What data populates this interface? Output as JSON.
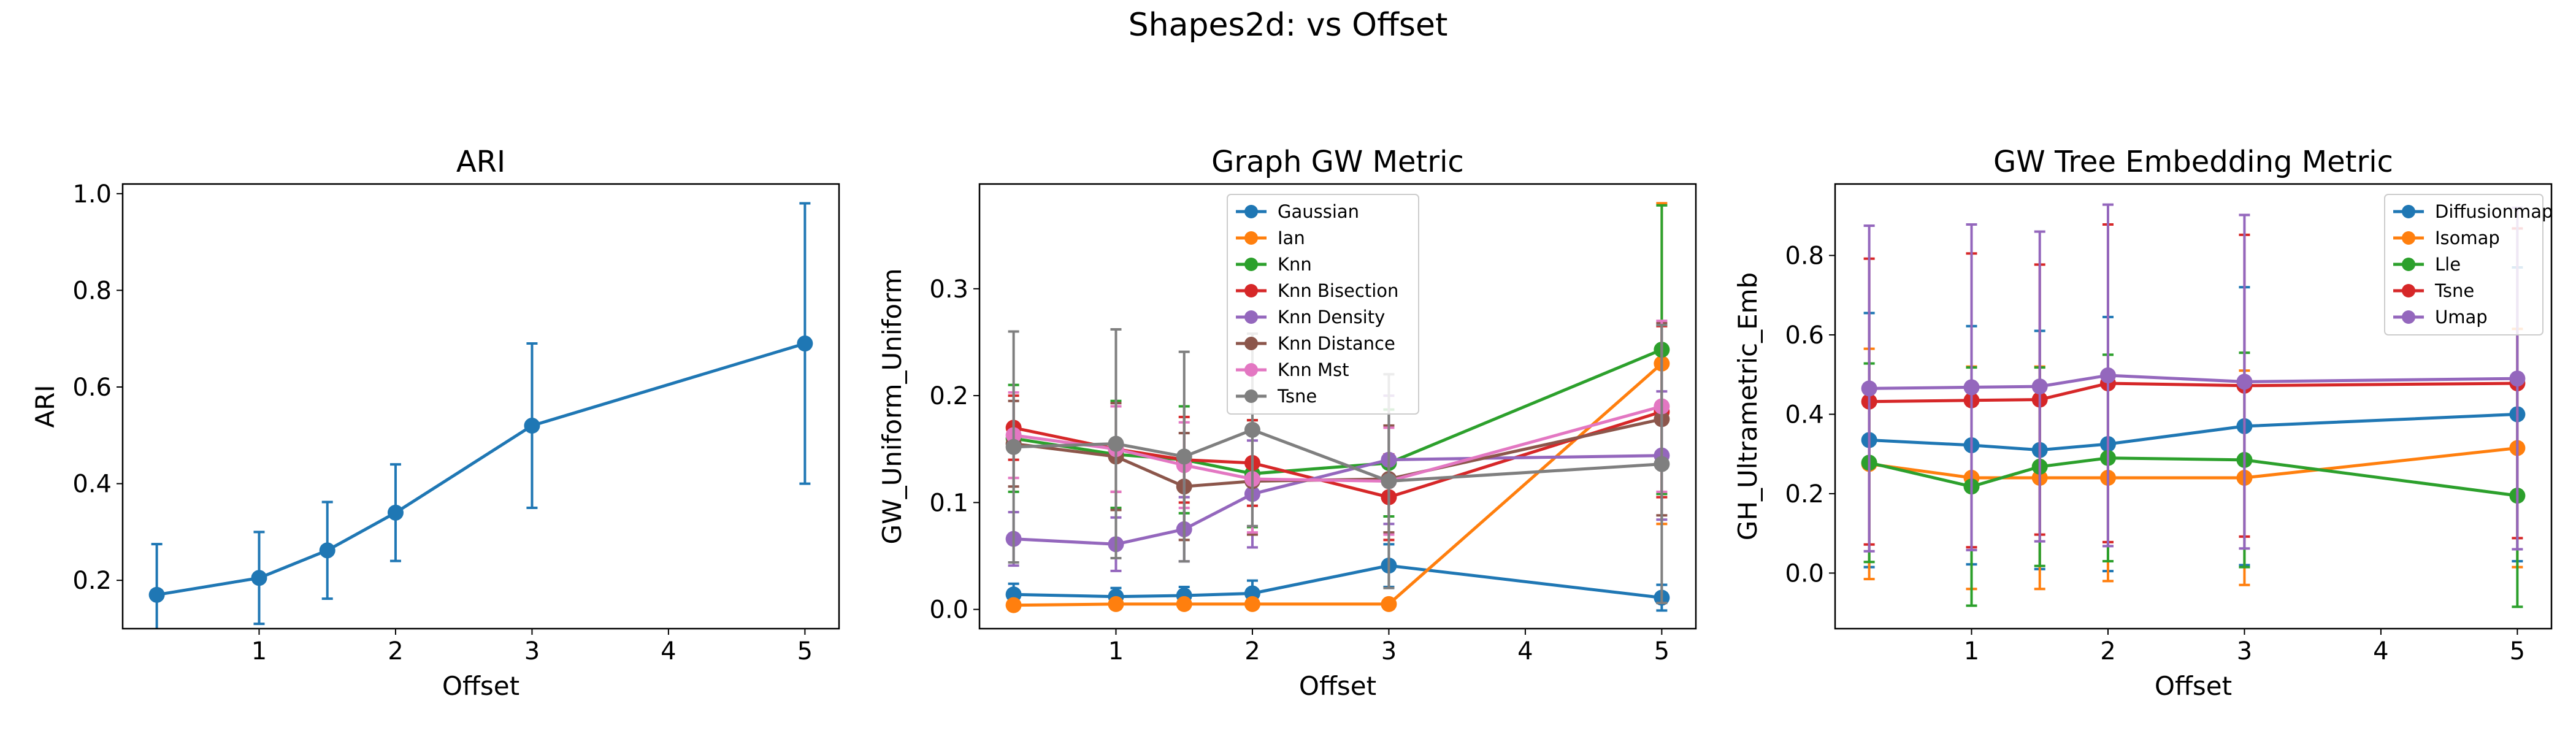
{
  "figure": {
    "suptitle": "Shapes2d: vs Offset"
  },
  "chart_data": [
    {
      "type": "line",
      "title": "ARI",
      "xlabel": "Offset",
      "ylabel": "ARI",
      "xlim": [
        0.0,
        5.25
      ],
      "ylim": [
        0.1,
        1.02
      ],
      "xticks": [
        1,
        2,
        3,
        4,
        5
      ],
      "yticks": [
        0.2,
        0.4,
        0.6,
        0.8,
        1.0
      ],
      "grid": false,
      "legend": null,
      "x": [
        0.25,
        1,
        1.5,
        2,
        3,
        5
      ],
      "series": [
        {
          "color": "#1f77b4",
          "values": [
            0.17,
            0.205,
            0.262,
            0.34,
            0.52,
            0.69
          ],
          "err": [
            0.105,
            0.095,
            0.1,
            0.1,
            0.17,
            0.29
          ]
        }
      ]
    },
    {
      "type": "line",
      "title": "Graph GW Metric",
      "xlabel": "Offset",
      "ylabel": "GW_Uniform_Uniform",
      "xlim": [
        0.0,
        5.25
      ],
      "ylim": [
        -0.018,
        0.398
      ],
      "xticks": [
        1,
        2,
        3,
        4,
        5
      ],
      "yticks": [
        0.0,
        0.1,
        0.2,
        0.3
      ],
      "grid": false,
      "legend": "top-center",
      "x": [
        0.25,
        1,
        1.5,
        2,
        3,
        5
      ],
      "series": [
        {
          "name": "Gaussian",
          "color": "#1f77b4",
          "values": [
            0.014,
            0.012,
            0.013,
            0.015,
            0.041,
            0.011
          ],
          "err": [
            0.01,
            0.008,
            0.008,
            0.012,
            0.02,
            0.012
          ]
        },
        {
          "name": "Ian",
          "color": "#ff7f0e",
          "values": [
            0.004,
            0.005,
            0.005,
            0.005,
            0.005,
            0.23
          ],
          "err": [
            0.003,
            0.003,
            0.003,
            0.003,
            0.003,
            0.15
          ]
        },
        {
          "name": "Knn",
          "color": "#2ca02c",
          "values": [
            0.16,
            0.145,
            0.14,
            0.127,
            0.137,
            0.243
          ],
          "err": [
            0.05,
            0.05,
            0.05,
            0.05,
            0.05,
            0.135
          ]
        },
        {
          "name": "Knn Bisection",
          "color": "#d62728",
          "values": [
            0.17,
            0.15,
            0.14,
            0.137,
            0.105,
            0.185
          ],
          "err": [
            0.03,
            0.04,
            0.04,
            0.04,
            0.04,
            0.08
          ]
        },
        {
          "name": "Knn Density",
          "color": "#9467bd",
          "values": [
            0.066,
            0.061,
            0.075,
            0.108,
            0.14,
            0.144
          ],
          "err": [
            0.025,
            0.025,
            0.03,
            0.05,
            0.06,
            0.06
          ]
        },
        {
          "name": "Knn Distance",
          "color": "#8c564b",
          "values": [
            0.155,
            0.143,
            0.115,
            0.12,
            0.122,
            0.178
          ],
          "err": [
            0.04,
            0.05,
            0.05,
            0.05,
            0.05,
            0.09
          ]
        },
        {
          "name": "Knn Mst",
          "color": "#e377c2",
          "values": [
            0.163,
            0.15,
            0.135,
            0.122,
            0.12,
            0.19
          ],
          "err": [
            0.04,
            0.04,
            0.04,
            0.05,
            0.05,
            0.08
          ]
        },
        {
          "name": "Tsne",
          "color": "#7f7f7f",
          "values": [
            0.152,
            0.155,
            0.143,
            0.168,
            0.12,
            0.136
          ],
          "err": [
            0.108,
            0.107,
            0.098,
            0.09,
            0.1,
            0.13
          ]
        }
      ]
    },
    {
      "type": "line",
      "title": "GW Tree Embedding Metric",
      "xlabel": "Offset",
      "ylabel": "GH_Ultrametric_Emb",
      "xlim": [
        0.0,
        5.25
      ],
      "ylim": [
        -0.14,
        0.98
      ],
      "xticks": [
        1,
        2,
        3,
        4,
        5
      ],
      "yticks": [
        0.0,
        0.2,
        0.4,
        0.6,
        0.8
      ],
      "grid": false,
      "legend": "top-right",
      "x": [
        0.25,
        1,
        1.5,
        2,
        3,
        5
      ],
      "series": [
        {
          "name": "Diffusionmap",
          "color": "#1f77b4",
          "values": [
            0.335,
            0.322,
            0.31,
            0.325,
            0.37,
            0.4
          ],
          "err": [
            0.32,
            0.3,
            0.3,
            0.32,
            0.35,
            0.37
          ]
        },
        {
          "name": "Isomap",
          "color": "#ff7f0e",
          "values": [
            0.275,
            0.24,
            0.24,
            0.24,
            0.24,
            0.315
          ],
          "err": [
            0.29,
            0.28,
            0.28,
            0.26,
            0.27,
            0.3
          ]
        },
        {
          "name": "Lle",
          "color": "#2ca02c",
          "values": [
            0.278,
            0.218,
            0.268,
            0.29,
            0.285,
            0.195
          ],
          "err": [
            0.25,
            0.3,
            0.25,
            0.26,
            0.27,
            0.28
          ]
        },
        {
          "name": "Tsne",
          "color": "#d62728",
          "values": [
            0.432,
            0.435,
            0.437,
            0.478,
            0.472,
            0.478
          ],
          "err": [
            0.36,
            0.37,
            0.34,
            0.4,
            0.38,
            0.39
          ]
        },
        {
          "name": "Umap",
          "color": "#9467bd",
          "values": [
            0.465,
            0.468,
            0.47,
            0.498,
            0.482,
            0.49
          ],
          "err": [
            0.41,
            0.41,
            0.39,
            0.43,
            0.42,
            0.43
          ]
        }
      ]
    }
  ]
}
